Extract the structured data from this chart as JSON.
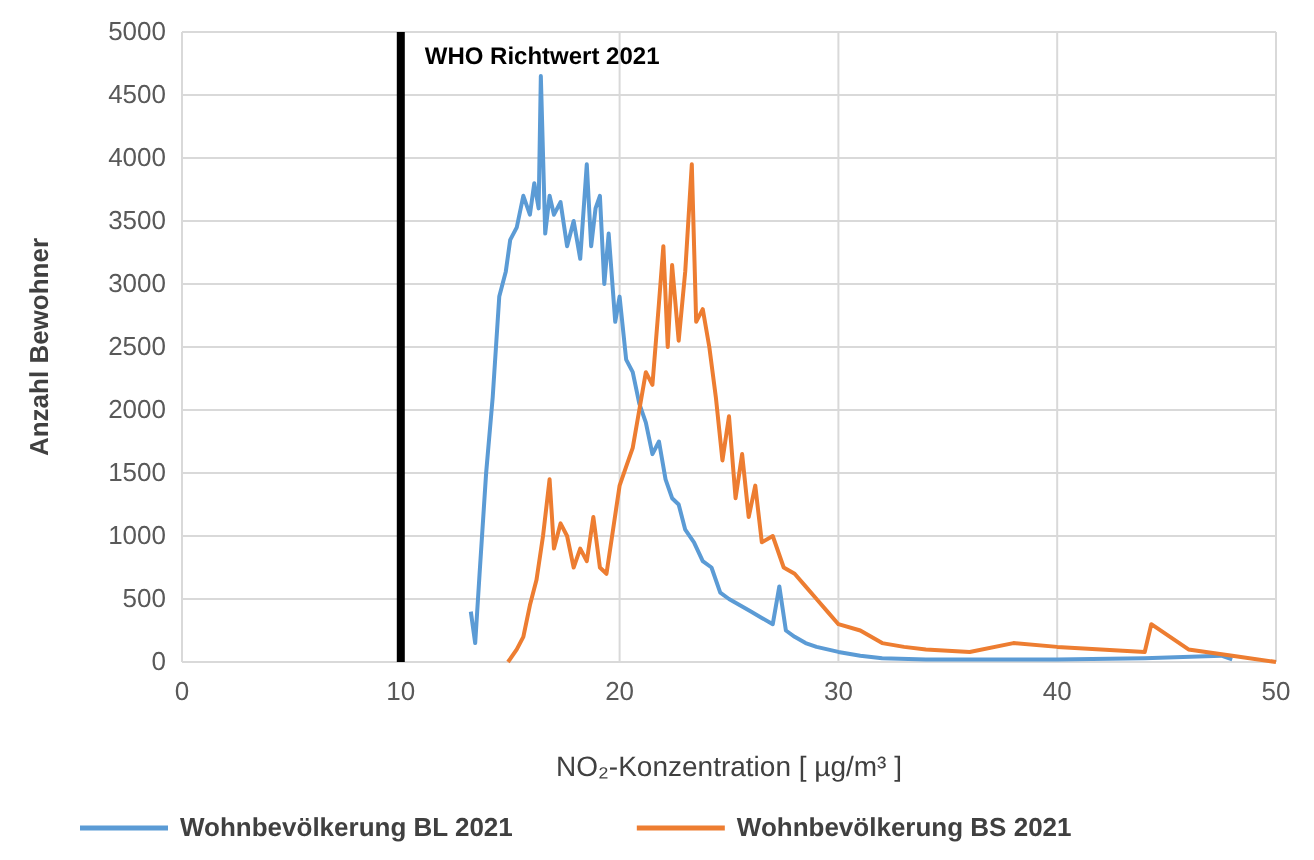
{
  "chart_data": {
    "type": "line",
    "xlabel": "NO₂-Konzentration [ µg/m³ ]",
    "ylabel": "Anzahl Bewohner",
    "xlim": [
      0,
      50
    ],
    "xticks": [
      0,
      10,
      20,
      30,
      40,
      50
    ],
    "ylim": [
      0,
      5000
    ],
    "yticks": [
      0,
      500,
      1000,
      1500,
      2000,
      2500,
      3000,
      3500,
      4000,
      4500,
      5000
    ],
    "grid": true,
    "legend": "bottom",
    "line_style": "solid",
    "marker": "none",
    "ref_lines": [
      {
        "axis": "x",
        "value": 10,
        "label": "WHO Richtwert 2021",
        "color": "#000000"
      }
    ],
    "series": [
      {
        "name": "Wohnbevölkerung BL 2021",
        "color": "#5b9bd5",
        "x": [
          13.2,
          13.4,
          13.6,
          13.9,
          14.2,
          14.5,
          14.8,
          15.0,
          15.3,
          15.6,
          15.9,
          16.1,
          16.3,
          16.4,
          16.6,
          16.8,
          17.0,
          17.3,
          17.6,
          17.9,
          18.2,
          18.5,
          18.7,
          18.9,
          19.1,
          19.3,
          19.5,
          19.8,
          20.0,
          20.3,
          20.6,
          20.9,
          21.2,
          21.5,
          21.8,
          22.1,
          22.4,
          22.7,
          23.0,
          23.4,
          23.8,
          24.2,
          24.6,
          25.0,
          25.5,
          26.0,
          26.5,
          27.0,
          27.3,
          27.6,
          28.0,
          28.5,
          29.0,
          30.0,
          31.0,
          32.0,
          34.0,
          36.0,
          40.0,
          44.0,
          47.5,
          48.0
        ],
        "values": [
          400,
          150,
          700,
          1500,
          2100,
          2900,
          3100,
          3350,
          3450,
          3700,
          3550,
          3800,
          3600,
          4650,
          3400,
          3700,
          3550,
          3650,
          3300,
          3500,
          3200,
          3950,
          3300,
          3600,
          3700,
          3000,
          3400,
          2700,
          2900,
          2400,
          2300,
          2050,
          1900,
          1650,
          1750,
          1450,
          1300,
          1250,
          1050,
          950,
          800,
          750,
          550,
          500,
          450,
          400,
          350,
          300,
          600,
          250,
          200,
          150,
          120,
          80,
          50,
          30,
          20,
          20,
          20,
          30,
          50,
          20
        ]
      },
      {
        "name": "Wohnbevölkerung BS 2021",
        "color": "#ed7d31",
        "x": [
          14.9,
          15.3,
          15.6,
          15.9,
          16.2,
          16.5,
          16.8,
          17.0,
          17.3,
          17.6,
          17.9,
          18.2,
          18.5,
          18.8,
          19.1,
          19.4,
          19.7,
          20.0,
          20.3,
          20.6,
          20.9,
          21.2,
          21.5,
          21.8,
          22.0,
          22.2,
          22.4,
          22.7,
          23.0,
          23.3,
          23.5,
          23.8,
          24.1,
          24.4,
          24.7,
          25.0,
          25.3,
          25.6,
          25.9,
          26.2,
          26.5,
          27.0,
          27.5,
          28.0,
          28.5,
          29.0,
          29.5,
          30.0,
          31.0,
          32.0,
          33.0,
          34.0,
          36.0,
          38.0,
          40.0,
          42.0,
          44.0,
          44.3,
          46.0,
          48.0,
          50.0
        ],
        "values": [
          0,
          100,
          200,
          450,
          650,
          1000,
          1450,
          900,
          1100,
          1000,
          750,
          900,
          800,
          1150,
          750,
          700,
          1050,
          1400,
          1550,
          1700,
          2000,
          2300,
          2200,
          2850,
          3300,
          2500,
          3150,
          2550,
          3100,
          3950,
          2700,
          2800,
          2500,
          2100,
          1600,
          1950,
          1300,
          1650,
          1150,
          1400,
          950,
          1000,
          750,
          700,
          600,
          500,
          400,
          300,
          250,
          150,
          120,
          100,
          80,
          150,
          120,
          100,
          80,
          300,
          100,
          50,
          0
        ]
      }
    ]
  }
}
